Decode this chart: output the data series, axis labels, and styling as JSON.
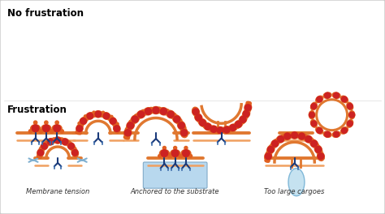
{
  "title_no_frustration": "No frustration",
  "title_frustration": "Frustration",
  "label_membrane_tension": "Membrane tension",
  "label_anchored": "Anchored to the substrate",
  "label_too_large": "Too large cargoes",
  "bg_color": "#ffffff",
  "border_color": "#c8c8c8",
  "membrane_color": "#e07830",
  "membrane_inner_color": "#f0a060",
  "clathrin_red": "#cc2222",
  "clathrin_orange": "#e06020",
  "adaptor_dark": "#1a3a7a",
  "adaptor_mid": "#3a6aaa",
  "vesicle_fill": "#c5e2f0",
  "vesicle_edge": "#80b8d8",
  "substrate_fill": "#b8d8ee",
  "substrate_edge": "#80aac8",
  "arrow_color": "#80b0d0",
  "title_fontsize": 8.5,
  "label_fontsize": 6.0
}
